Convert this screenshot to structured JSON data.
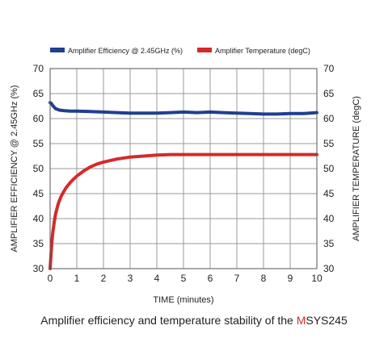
{
  "caption": {
    "prefix": "Amplifier efficiency and temperature stability of the ",
    "highlight": "M",
    "suffix": "SYS245"
  },
  "chart_data": {
    "type": "line",
    "xlabel": "TIME (minutes)",
    "ylabel_left": "AMPLIFIER EFFICIENCY @ 2.45GHz (%)",
    "ylabel_right": "AMPLIFIER TEMPERATURE (degC)",
    "xlim": [
      0,
      10
    ],
    "ylim": [
      30,
      70
    ],
    "x_ticks": [
      "0",
      "1",
      "2",
      "3",
      "4",
      "5",
      "6",
      "7",
      "8",
      "9",
      "10"
    ],
    "y_ticks": [
      "30",
      "35",
      "40",
      "45",
      "50",
      "55",
      "60",
      "65",
      "70"
    ],
    "grid": true,
    "legend_position": "top",
    "series": [
      {
        "name": "Amplifier Efficiency @ 2.45GHz (%)",
        "color": "#1f3f8f",
        "axis": "left",
        "x": [
          0,
          0.05,
          0.1,
          0.2,
          0.35,
          0.5,
          0.75,
          1,
          1.5,
          2,
          2.5,
          3,
          3.5,
          4,
          4.5,
          5,
          5.5,
          6,
          6.5,
          7,
          7.5,
          8,
          8.5,
          9,
          9.5,
          10
        ],
        "y": [
          63.2,
          63.0,
          62.6,
          62.0,
          61.7,
          61.6,
          61.5,
          61.5,
          61.4,
          61.3,
          61.2,
          61.1,
          61.1,
          61.1,
          61.2,
          61.3,
          61.2,
          61.3,
          61.2,
          61.1,
          61.0,
          60.9,
          60.9,
          61.0,
          61.0,
          61.2
        ]
      },
      {
        "name": "Amplifier Temperature (degC)",
        "color": "#d42a2a",
        "axis": "right",
        "x": [
          0,
          0.03,
          0.06,
          0.1,
          0.15,
          0.2,
          0.3,
          0.4,
          0.5,
          0.6,
          0.75,
          0.9,
          1,
          1.25,
          1.5,
          1.75,
          2,
          2.5,
          3,
          3.5,
          4,
          4.5,
          5,
          6,
          7,
          8,
          9,
          10
        ],
        "y": [
          30.0,
          32.5,
          35.0,
          37.2,
          39.2,
          40.8,
          42.9,
          44.3,
          45.3,
          46.2,
          47.2,
          48.0,
          48.5,
          49.5,
          50.3,
          50.9,
          51.3,
          51.9,
          52.3,
          52.5,
          52.7,
          52.8,
          52.8,
          52.8,
          52.8,
          52.8,
          52.8,
          52.8
        ]
      }
    ]
  }
}
